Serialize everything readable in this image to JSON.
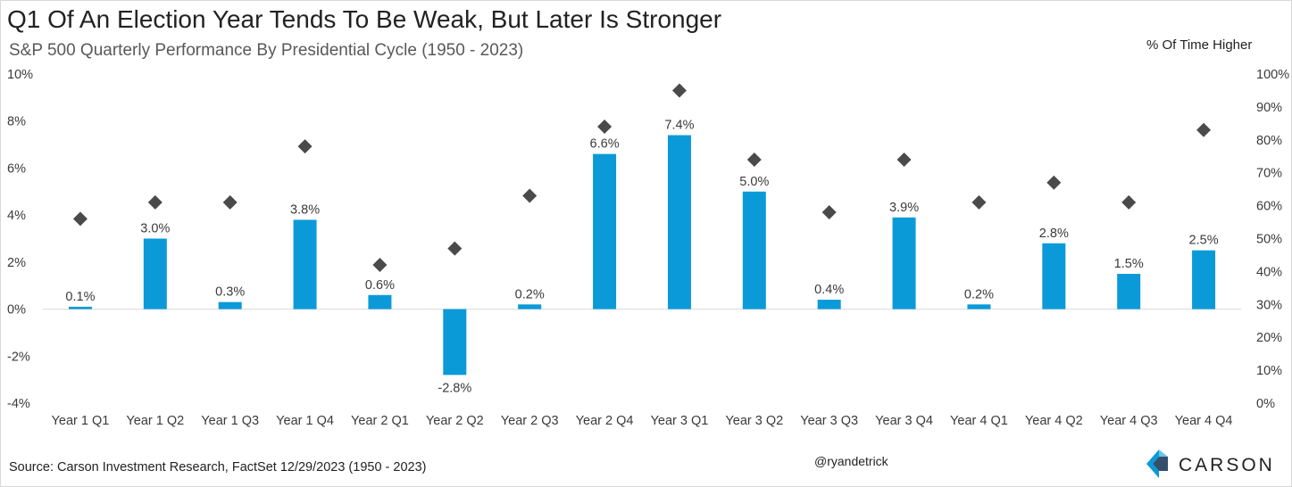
{
  "title": "Q1 Of An Election Year Tends To Be Weak, But Later Is Stronger",
  "subtitle": "S&P 500 Quarterly Performance By Presidential Cycle (1950 - 2023)",
  "right_axis_title": "% Of Time Higher",
  "source": "Source: Carson Investment Research, FactSet 12/29/2023 (1950 - 2023)",
  "handle": "@ryandetrick",
  "logo_text": "CARSON",
  "colors": {
    "bar": "#0b9ad8",
    "marker": "#4a4a4a",
    "gridline": "#d9d9d9"
  },
  "chart_data": {
    "type": "bar",
    "categories": [
      "Year 1 Q1",
      "Year 1 Q2",
      "Year 1 Q3",
      "Year 1 Q4",
      "Year 2 Q1",
      "Year 2 Q2",
      "Year 2 Q3",
      "Year 2 Q4",
      "Year 3 Q1",
      "Year 3 Q2",
      "Year 3 Q3",
      "Year 3 Q4",
      "Year 4 Q1",
      "Year 4 Q2",
      "Year 4 Q3",
      "Year 4 Q4"
    ],
    "series": [
      {
        "type": "bar",
        "axis": "left",
        "values": [
          0.1,
          3.0,
          0.3,
          3.8,
          0.6,
          -2.8,
          0.2,
          6.6,
          7.4,
          5.0,
          0.4,
          3.9,
          0.2,
          2.8,
          1.5,
          2.5
        ],
        "labels": [
          "0.1%",
          "3.0%",
          "0.3%",
          "3.8%",
          "0.6%",
          "-2.8%",
          "0.2%",
          "6.6%",
          "7.4%",
          "5.0%",
          "0.4%",
          "3.9%",
          "0.2%",
          "2.8%",
          "1.5%",
          "2.5%"
        ]
      },
      {
        "type": "scatter",
        "marker": "diamond",
        "axis": "right",
        "values": [
          56,
          61,
          61,
          78,
          42,
          47,
          63,
          84,
          95,
          74,
          58,
          74,
          61,
          67,
          61,
          83
        ]
      }
    ],
    "y_left": {
      "min": -4,
      "max": 10,
      "step": 2,
      "ticks": [
        "-4%",
        "-2%",
        "0%",
        "2%",
        "4%",
        "6%",
        "8%",
        "10%"
      ]
    },
    "y_right": {
      "min": 0,
      "max": 100,
      "step": 10,
      "ticks": [
        "0%",
        "10%",
        "20%",
        "30%",
        "40%",
        "50%",
        "60%",
        "70%",
        "80%",
        "90%",
        "100%"
      ]
    },
    "grid": false,
    "legend": "none"
  }
}
